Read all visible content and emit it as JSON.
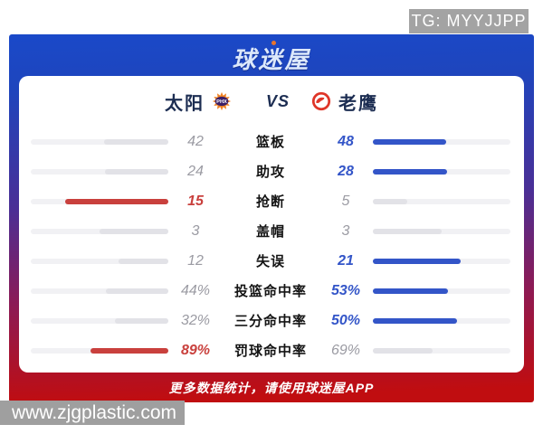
{
  "watermark_tg": {
    "text": "TG: MYYJJPP"
  },
  "watermark_site": {
    "text": "www.zjgplastic.com"
  },
  "header": {
    "app_name": "球迷屋"
  },
  "match": {
    "home_name": "太阳",
    "home_logo": "suns-phx-logo",
    "vs_label": "VS",
    "away_logo": "hawks-logo",
    "away_name": "老鹰"
  },
  "chart_data": {
    "type": "bar",
    "orientation": "horizontal-paired",
    "categories": [
      "篮板",
      "助攻",
      "抢断",
      "盖帽",
      "失误",
      "投篮命中率",
      "三分命中率",
      "罚球命中率"
    ],
    "series": [
      {
        "name": "太阳",
        "values": [
          42,
          24,
          15,
          3,
          12,
          "44%",
          "32%",
          "89%"
        ]
      },
      {
        "name": "老鹰",
        "values": [
          48,
          28,
          5,
          3,
          21,
          "53%",
          "50%",
          "69%"
        ]
      }
    ],
    "legend_position": "top",
    "note": "bars grow outward from center, length proportional to value share within each row"
  },
  "stats": [
    {
      "label": "篮板",
      "home_value": "42",
      "away_value": "48",
      "home_pct": 46.7,
      "away_pct": 53.3,
      "highlight": "away"
    },
    {
      "label": "助攻",
      "home_value": "24",
      "away_value": "28",
      "home_pct": 46.2,
      "away_pct": 53.8,
      "highlight": "away"
    },
    {
      "label": "抢断",
      "home_value": "15",
      "away_value": "5",
      "home_pct": 75.0,
      "away_pct": 25.0,
      "highlight": "home"
    },
    {
      "label": "盖帽",
      "home_value": "3",
      "away_value": "3",
      "home_pct": 50.0,
      "away_pct": 50.0,
      "highlight": "none"
    },
    {
      "label": "失误",
      "home_value": "12",
      "away_value": "21",
      "home_pct": 36.4,
      "away_pct": 63.6,
      "highlight": "away"
    },
    {
      "label": "投篮命中率",
      "home_value": "44%",
      "away_value": "53%",
      "home_pct": 45.4,
      "away_pct": 54.6,
      "highlight": "away"
    },
    {
      "label": "三分命中率",
      "home_value": "32%",
      "away_value": "50%",
      "home_pct": 39.0,
      "away_pct": 61.0,
      "highlight": "away"
    },
    {
      "label": "罚球命中率",
      "home_value": "89%",
      "away_value": "69%",
      "home_pct": 56.3,
      "away_pct": 43.7,
      "highlight": "home"
    }
  ],
  "footer": {
    "text": "更多数据统计，请使用球迷屋APP"
  },
  "colors": {
    "home_accent": "#c9403d",
    "away_accent": "#3355c8",
    "bar_track": "#f1f1f4",
    "bar_neutral": "#e2e2e7",
    "value_gray": "#9b9ba3",
    "header_blue": "#1a49c9",
    "footer_red": "#c00d10",
    "watermark_gray": "#a3a3a3"
  }
}
